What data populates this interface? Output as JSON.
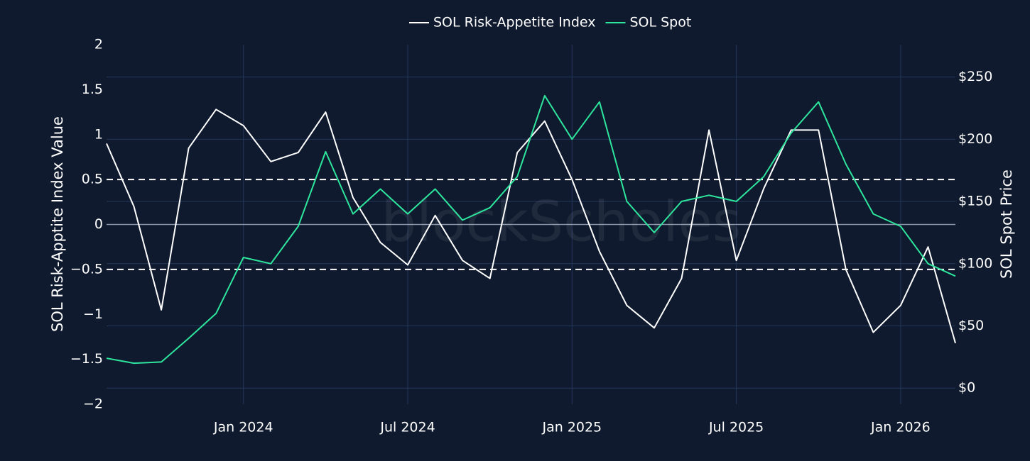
{
  "chart_data": {
    "type": "line",
    "legend": "top-center",
    "watermark": "blockScholes",
    "ylabel": "SOL Risk-Apptite Index Value",
    "y2label": "SOL Spot Price",
    "x": [
      "2023-08",
      "2023-09",
      "2023-10",
      "2023-11",
      "2023-12",
      "2024-01",
      "2024-02",
      "2024-03",
      "2024-04",
      "2024-05",
      "2024-06",
      "2024-07",
      "2024-08",
      "2024-09",
      "2024-10",
      "2024-11",
      "2024-12",
      "2025-01",
      "2025-02",
      "2025-03",
      "2025-04",
      "2025-05",
      "2025-06",
      "2025-07",
      "2025-08",
      "2025-09",
      "2025-10",
      "2025-11",
      "2025-12",
      "2026-01",
      "2026-02",
      "2026-03"
    ],
    "xlim": [
      "2023-08",
      "2026-03"
    ],
    "xticks": [
      {
        "value": "2024-01",
        "label": "Jan 2024"
      },
      {
        "value": "2024-07",
        "label": "Jul 2024"
      },
      {
        "value": "2025-01",
        "label": "Jan 2025"
      },
      {
        "value": "2025-07",
        "label": "Jul 2025"
      },
      {
        "value": "2026-01",
        "label": "Jan 2026"
      }
    ],
    "ylim": [
      -2,
      2
    ],
    "yticks": [
      {
        "value": -2,
        "label": "−2"
      },
      {
        "value": -1.5,
        "label": "−1.5"
      },
      {
        "value": -1,
        "label": "−1"
      },
      {
        "value": -0.5,
        "label": "−0.5"
      },
      0,
      0.5,
      1,
      1.5,
      2
    ],
    "y2lim": [
      -13,
      276
    ],
    "y2ticks": [
      {
        "value": 0,
        "label": "$0"
      },
      {
        "value": 50,
        "label": "$50"
      },
      {
        "value": 100,
        "label": "$100"
      },
      {
        "value": 150,
        "label": "$150"
      },
      {
        "value": 200,
        "label": "$200"
      },
      {
        "value": 250,
        "label": "$250"
      }
    ],
    "grid": true,
    "zeroline": true,
    "hlines": [
      0.5,
      -0.5
    ],
    "series": [
      {
        "name": "SOL Risk-Appetite Index",
        "color": "#ffffff",
        "values": [
          0.9,
          0.2,
          -0.95,
          0.85,
          1.28,
          1.1,
          0.7,
          0.8,
          1.25,
          0.3,
          -0.2,
          -0.45,
          0.1,
          -0.4,
          -0.6,
          0.8,
          1.15,
          0.5,
          -0.3,
          -0.9,
          -1.15,
          -0.6,
          1.05,
          -0.4,
          0.4,
          1.05,
          1.05,
          -0.5,
          -1.2,
          -0.9,
          -0.25,
          -1.32
        ]
      },
      {
        "name": "SOL Spot",
        "color": "#2ee59d",
        "axis": "y2",
        "values": [
          24,
          20,
          21,
          40,
          60,
          105,
          100,
          130,
          190,
          140,
          160,
          140,
          160,
          135,
          145,
          170,
          235,
          200,
          230,
          150,
          125,
          150,
          155,
          150,
          170,
          205,
          230,
          180,
          140,
          130,
          100,
          90
        ]
      }
    ]
  }
}
